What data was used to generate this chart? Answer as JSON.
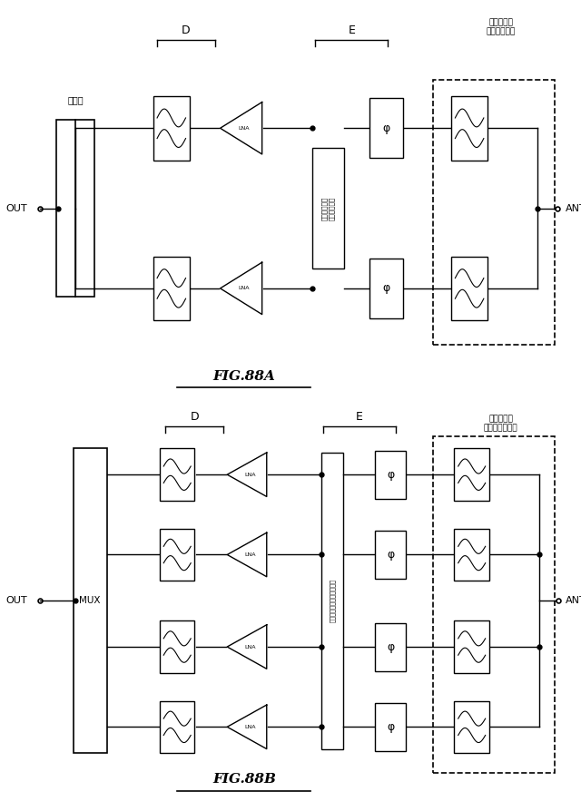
{
  "bg_color": "#ffffff",
  "line_color": "#000000",
  "fig88a": {
    "title": "FIG.88A",
    "label_ketsugoki": "結合器",
    "label_D": "D",
    "label_E": "E",
    "label_filter": "フィルタ／\nダイプレクサ",
    "label_switch": "スイッチング\nネットワーク",
    "label_out": "OUT",
    "label_ant": "ANT",
    "label_lna": "LNA",
    "label_phi": "φ"
  },
  "fig88b": {
    "title": "FIG.88B",
    "label_mux": "MUX",
    "label_D": "D",
    "label_E": "E",
    "label_filter": "フィルタ／\nマルチプレクサ",
    "label_switch": "スイッチングネットワーク",
    "label_out": "OUT",
    "label_ant": "ANT",
    "label_lna": "LNA",
    "label_phi": "φ"
  }
}
